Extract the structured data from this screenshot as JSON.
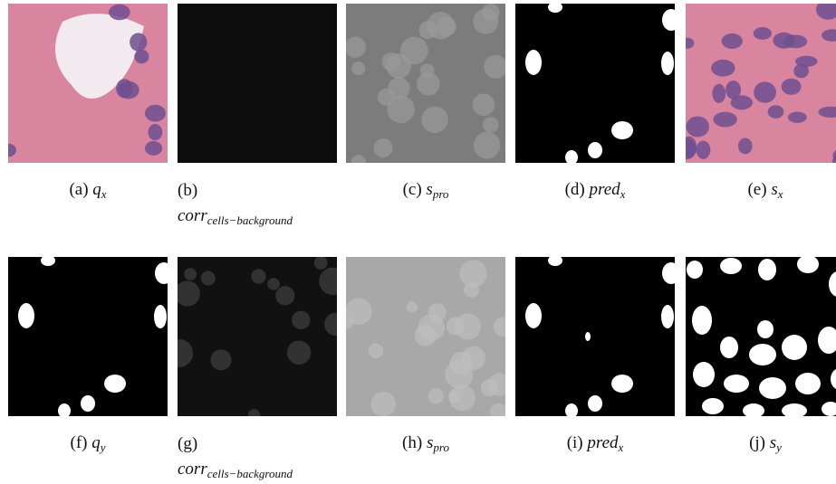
{
  "panels": [
    {
      "label": "(a)",
      "symbol": "q",
      "subscript": "x"
    },
    {
      "label": "(b)",
      "symbol": "corr",
      "subscript": "cells−background"
    },
    {
      "label": "(c)",
      "symbol": "s",
      "subscript": "pro"
    },
    {
      "label": "(d)",
      "symbol": "pred",
      "subscript": "x"
    },
    {
      "label": "(e)",
      "symbol": "s",
      "subscript": "x"
    },
    {
      "label": "(f)",
      "symbol": "q",
      "subscript": "y"
    },
    {
      "label": "(g)",
      "symbol": "corr",
      "subscript": "cells−background"
    },
    {
      "label": "(h)",
      "symbol": "s",
      "subscript": "pro"
    },
    {
      "label": "(i)",
      "symbol": "pred",
      "subscript": "x"
    },
    {
      "label": "(j)",
      "symbol": "s",
      "subscript": "y"
    }
  ]
}
